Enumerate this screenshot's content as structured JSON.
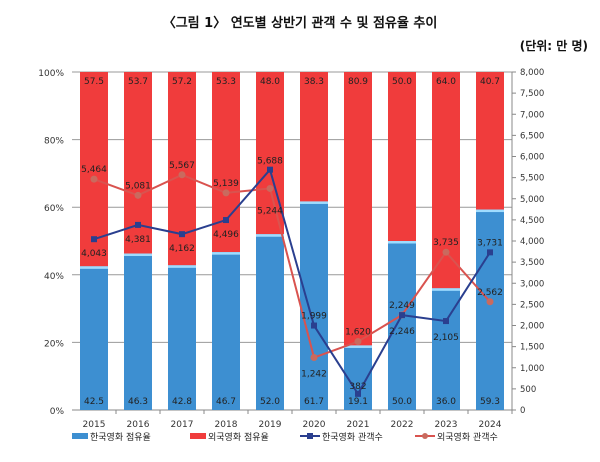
{
  "chart_data": {
    "type": "bar",
    "title": "〈그림 1〉 연도별 상반기 관객 수 및 점유율 추이",
    "unit": "(단위: 만 명)",
    "categories": [
      "2015",
      "2016",
      "2017",
      "2018",
      "2019",
      "2020",
      "2021",
      "2022",
      "2023",
      "2024"
    ],
    "series": [
      {
        "name": "한국영화 점유율",
        "type": "stacked-bar",
        "axis": "left",
        "color": "#3d8fd1",
        "values": [
          42.5,
          46.3,
          42.8,
          46.7,
          52.0,
          61.7,
          19.1,
          50.0,
          36.0,
          59.3
        ]
      },
      {
        "name": "외국영화 점유율",
        "type": "stacked-bar",
        "axis": "left",
        "color": "#f03c3c",
        "values": [
          57.5,
          53.7,
          57.2,
          53.3,
          48.0,
          38.3,
          80.9,
          50.0,
          64.0,
          40.7
        ]
      },
      {
        "name": "한국영화 관객수",
        "type": "line",
        "axis": "right",
        "color": "#2a3f8f",
        "values": [
          4043,
          4381,
          4162,
          4496,
          5688,
          1999,
          382,
          2246,
          2105,
          3731
        ]
      },
      {
        "name": "외국영화 관객수",
        "type": "line",
        "axis": "right",
        "color": "#d9534f",
        "values": [
          5464,
          5081,
          5567,
          5139,
          5244,
          1242,
          1620,
          2249,
          3735,
          2562
        ]
      }
    ],
    "left_axis": {
      "ticks": [
        "0%",
        "20%",
        "40%",
        "60%",
        "80%",
        "100%"
      ],
      "range": [
        0,
        100
      ]
    },
    "right_axis": {
      "ticks": [
        "0",
        "500",
        "1,000",
        "1,500",
        "2,000",
        "2,500",
        "3,000",
        "3,500",
        "4,000",
        "4,500",
        "5,000",
        "5,500",
        "6,000",
        "6,500",
        "7,000",
        "7,500",
        "8,000"
      ],
      "range": [
        0,
        8000
      ]
    },
    "grid": true,
    "legend_placement": "bottom"
  }
}
